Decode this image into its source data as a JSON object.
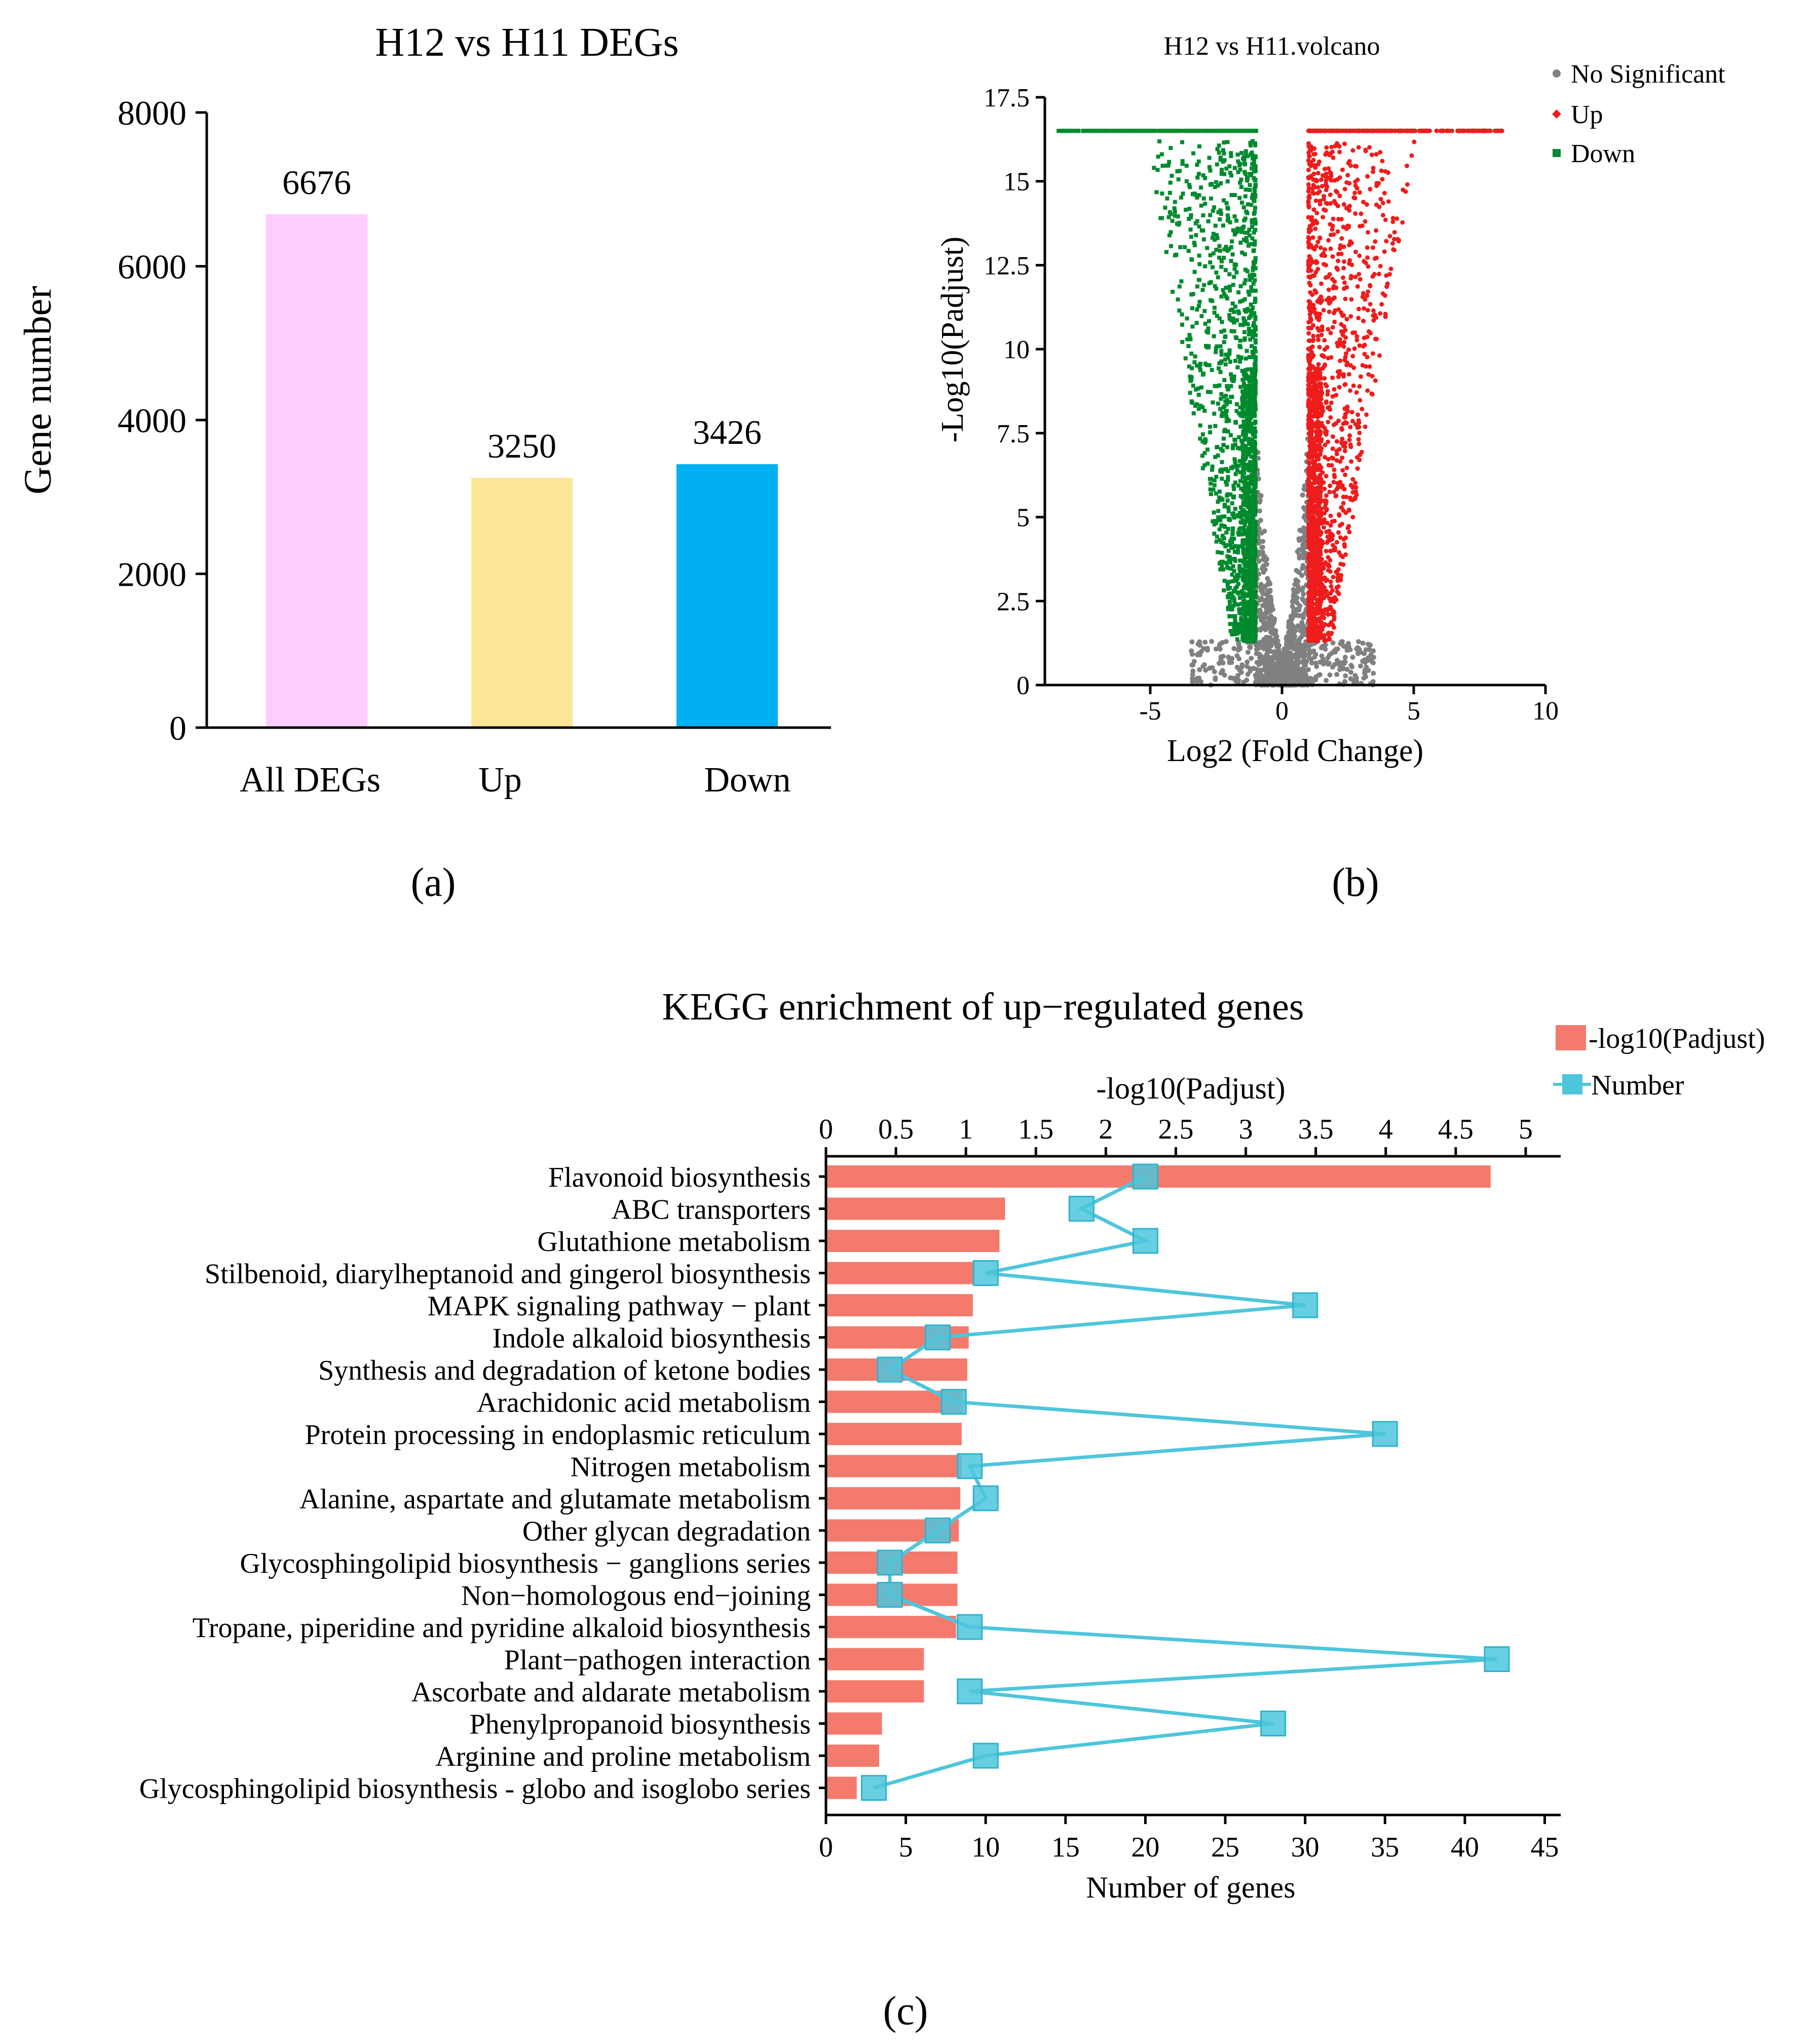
{
  "chart_data": [
    {
      "id": "a",
      "type": "bar",
      "title": "H12 vs H11 DEGs",
      "ylabel": "Gene number",
      "xlabel": "",
      "categories": [
        "All DEGs",
        "Up",
        "Down"
      ],
      "values": [
        6676,
        3250,
        3426
      ],
      "colors": [
        "#ffccff",
        "#fde598",
        "#00b0f0"
      ],
      "ylim": [
        0,
        8000
      ],
      "yticks": [
        "0",
        "2000",
        "4000",
        "6000",
        "8000"
      ],
      "panel_label": "(a)"
    },
    {
      "id": "b",
      "type": "scatter",
      "title": "H12 vs H11.volcano",
      "xlabel": "Log2 (Fold Change)",
      "ylabel": "-Log10(Padjust)",
      "xlim": [
        -9,
        10
      ],
      "ylim": [
        0,
        17.5
      ],
      "xticks": [
        "-5",
        "0",
        "5",
        "10"
      ],
      "yticks": [
        "0",
        "2.5",
        "5",
        "7.5",
        "10",
        "12.5",
        "15",
        "17.5"
      ],
      "cap_value": 16.5,
      "threshold_log2fc": 1,
      "threshold_padj": 1.3,
      "legend": [
        {
          "label": "No Significant",
          "color": "#808080",
          "marker": "circle"
        },
        {
          "label": "Up",
          "color": "#ee1c1c",
          "marker": "diamond"
        },
        {
          "label": "Down",
          "color": "#008a2e",
          "marker": "square"
        }
      ],
      "series_counts": {
        "Up": 3250,
        "Down": 3426
      },
      "panel_label": "(b)"
    },
    {
      "id": "c",
      "type": "bar",
      "title": "KEGG enrichment of up−regulated genes",
      "top_axis_label": "-log10(Padjust)",
      "xlabel": "Number of genes",
      "top_xlim": [
        0,
        5.25
      ],
      "top_xticks": [
        "0",
        "0.5",
        "1",
        "1.5",
        "2",
        "2.5",
        "3",
        "3.5",
        "4",
        "4.5",
        "5"
      ],
      "bottom_xlim": [
        0,
        46
      ],
      "bottom_xticks": [
        "0",
        "5",
        "10",
        "15",
        "20",
        "25",
        "30",
        "35",
        "40",
        "45"
      ],
      "legend": [
        {
          "label": "-log10(Padjust)",
          "color": "#f47a6e",
          "marker": "bar"
        },
        {
          "label": "Number",
          "color": "#4dc6dc",
          "marker": "line-square"
        }
      ],
      "pathways": [
        "Flavonoid biosynthesis",
        "ABC transporters",
        "Glutathione metabolism",
        "Stilbenoid, diarylheptanoid and gingerol biosynthesis",
        "MAPK signaling pathway − plant",
        "Indole alkaloid biosynthesis",
        "Synthesis and degradation of ketone bodies",
        "Arachidonic acid metabolism",
        "Protein processing in endoplasmic reticulum",
        "Nitrogen metabolism",
        "Alanine, aspartate and glutamate metabolism",
        "Other glycan degradation",
        "Glycosphingolipid biosynthesis  − ganglions series",
        "Non−homologous end−joining",
        "Tropane, piperidine and pyridine alkaloid biosynthesis",
        "Plant−pathogen interaction",
        "Ascorbate and aldarate metabolism",
        "Phenylpropanoid biosynthesis",
        "Arginine and proline metabolism",
        "Glycosphingolipid biosynthesis - globo and isoglobo series"
      ],
      "neg_log10_padjust": [
        4.75,
        1.28,
        1.24,
        1.05,
        1.05,
        1.02,
        1.01,
        0.98,
        0.97,
        0.97,
        0.96,
        0.95,
        0.94,
        0.94,
        0.93,
        0.7,
        0.7,
        0.4,
        0.38,
        0.22
      ],
      "number": [
        20,
        16,
        20,
        10,
        30,
        7,
        4,
        8,
        35,
        9,
        10,
        7,
        4,
        4,
        9,
        42,
        9,
        28,
        10,
        3
      ],
      "panel_label": "(c)"
    }
  ]
}
